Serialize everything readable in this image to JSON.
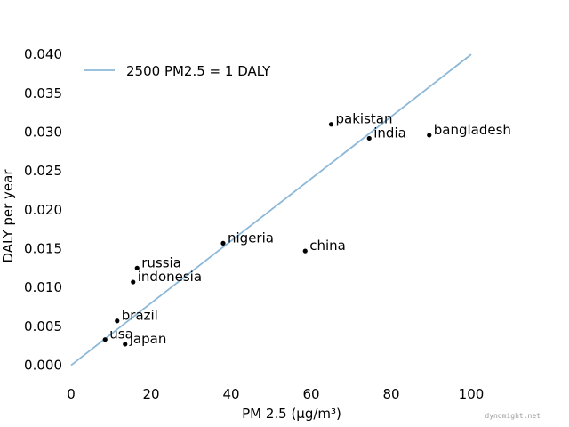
{
  "chart_data": {
    "type": "scatter",
    "xlabel": "PM 2.5 (µg/m³)",
    "ylabel": "DALY per year",
    "xlim": [
      0,
      120
    ],
    "ylim": [
      -0.002,
      0.0415
    ],
    "x_ticks": [
      0,
      20,
      40,
      60,
      80,
      100
    ],
    "y_ticks": [
      0.0,
      0.005,
      0.01,
      0.015,
      0.02,
      0.025,
      0.03,
      0.035,
      0.04
    ],
    "y_tick_labels": [
      "0.000",
      "0.005",
      "0.010",
      "0.015",
      "0.020",
      "0.025",
      "0.030",
      "0.035",
      "0.040"
    ],
    "grid": false,
    "legend_position": "top-left",
    "line": {
      "name": "2500 PM2.5 = 1 DALY",
      "x": [
        0,
        100
      ],
      "y": [
        0,
        0.04
      ],
      "color": "#8cb8d8"
    },
    "points": [
      {
        "label": "pakistan",
        "x": 65.0,
        "y": 0.031
      },
      {
        "label": "india",
        "x": 74.5,
        "y": 0.0292
      },
      {
        "label": "bangladesh",
        "x": 89.5,
        "y": 0.0296
      },
      {
        "label": "nigeria",
        "x": 38.0,
        "y": 0.0157
      },
      {
        "label": "china",
        "x": 58.5,
        "y": 0.0147
      },
      {
        "label": "russia",
        "x": 16.5,
        "y": 0.0125
      },
      {
        "label": "indonesia",
        "x": 15.5,
        "y": 0.0107
      },
      {
        "label": "brazil",
        "x": 11.5,
        "y": 0.0057
      },
      {
        "label": "usa",
        "x": 8.5,
        "y": 0.0033
      },
      {
        "label": "japan",
        "x": 13.5,
        "y": 0.0027
      }
    ],
    "point_color": "#000000"
  },
  "watermark": "dynomight.net"
}
